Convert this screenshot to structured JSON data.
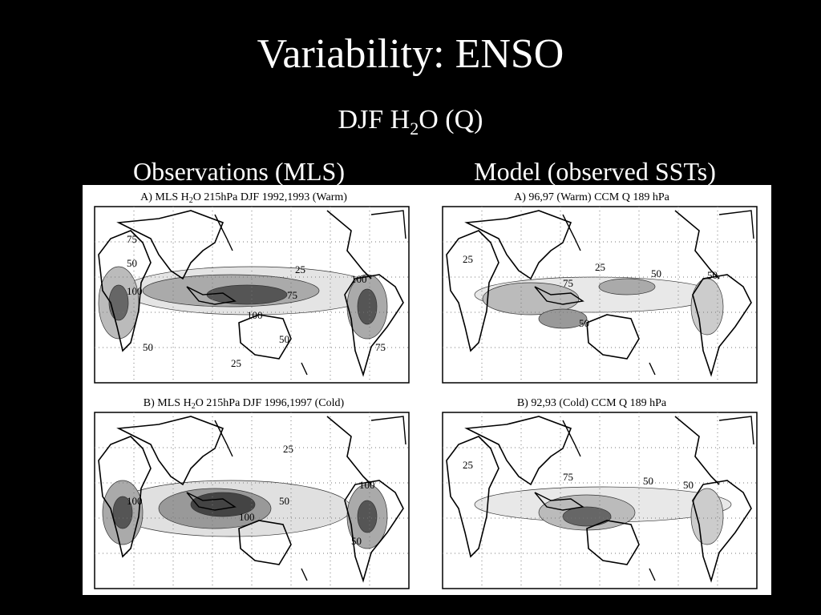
{
  "title": "Variability: ENSO",
  "subtitle": {
    "before": "DJF H",
    "subscript": "2",
    "after": "O (Q)"
  },
  "columns": [
    "Observations (MLS)",
    "Model (observed SSTs)"
  ],
  "panels": [
    {
      "title": {
        "before": "A) MLS H",
        "subscript": "2",
        "after": "O 215hPa DJF 1992,1993 (Warm)"
      },
      "contour_labels": [
        "25",
        "50",
        "75",
        "100",
        "75",
        "100",
        "50",
        "100",
        "50",
        "25",
        "75"
      ]
    },
    {
      "title": {
        "before": "A) 96,97 (Warm) CCM Q 189 hPa"
      },
      "contour_labels": [
        "25",
        "25",
        "50",
        "75",
        "50",
        "50"
      ]
    },
    {
      "title": {
        "before": "B) MLS H",
        "subscript": "2",
        "after": "O 215hPa DJF 1996,1997 (Cold)"
      },
      "contour_labels": [
        "25",
        "100",
        "50",
        "100",
        "100",
        "50"
      ]
    },
    {
      "title": {
        "before": "B) 92,93 (Cold) CCM Q 189 hPa"
      },
      "contour_labels": [
        "25",
        "75",
        "50",
        "50"
      ]
    }
  ]
}
